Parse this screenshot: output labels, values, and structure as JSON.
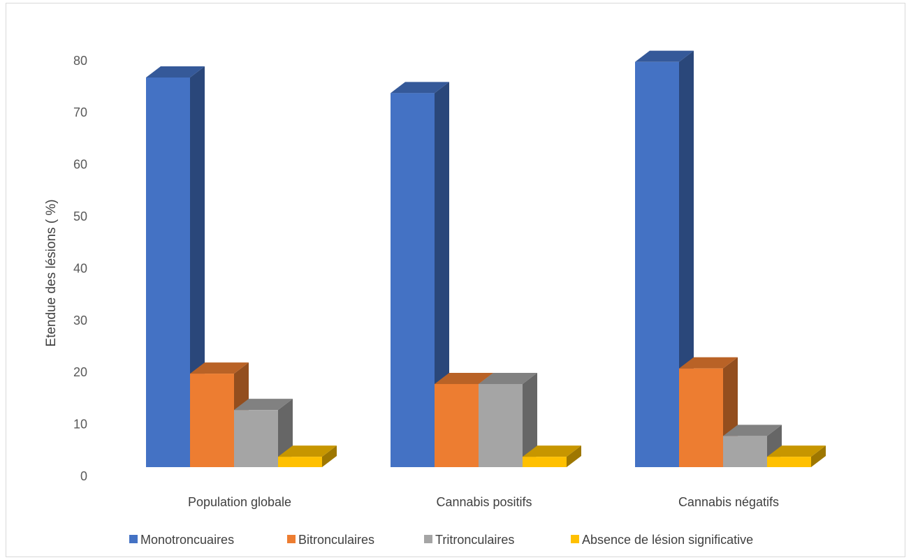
{
  "chart_data": {
    "type": "bar",
    "style": "3d-clustered-column",
    "title": "",
    "xlabel": "",
    "ylabel": "Etendue des lésions ( %)",
    "ylim": [
      0,
      80
    ],
    "yticks": [
      0,
      10,
      20,
      30,
      40,
      50,
      60,
      70,
      80
    ],
    "grid": false,
    "legend_position": "bottom",
    "categories": [
      "Population globale",
      "Cannabis positifs",
      "Cannabis négatifs"
    ],
    "series": [
      {
        "name": "Monotroncuaires",
        "values": [
          75,
          72,
          78
        ],
        "color": "#4472c4"
      },
      {
        "name": "Bitronculaires",
        "values": [
          18,
          16,
          19
        ],
        "color": "#ed7d31"
      },
      {
        "name": "Tritronculaires",
        "values": [
          11,
          16,
          6
        ],
        "color": "#a5a5a5"
      },
      {
        "name": "Absence de lésion significative",
        "values": [
          2,
          2,
          2
        ],
        "color": "#ffc000"
      }
    ]
  }
}
